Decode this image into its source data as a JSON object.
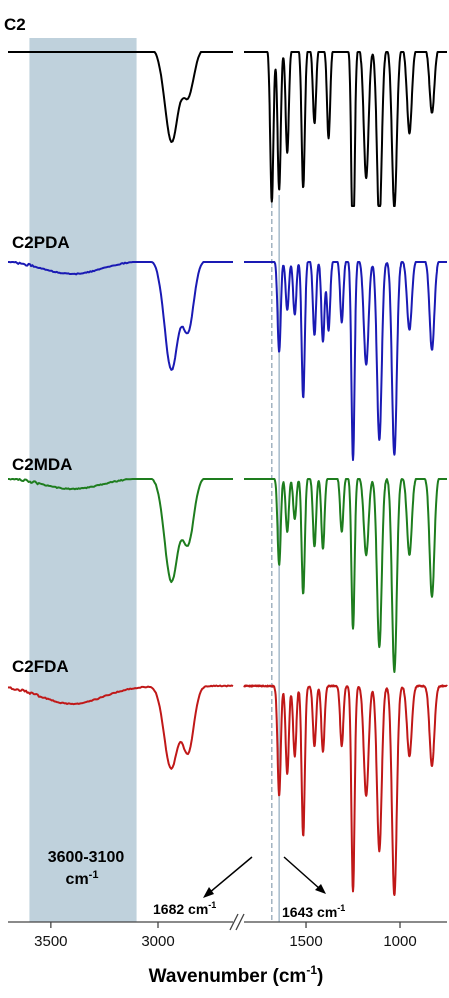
{
  "chart_data": {
    "type": "line",
    "title": "",
    "xlabel": "Wavenumber (cm",
    "xlabel_sup": "-1",
    "xlabel_end": ")",
    "ylabel": "",
    "x_reversed": true,
    "axis_break": "//",
    "xlim_left_segment": [
      3700,
      2650
    ],
    "xlim_right_segment": [
      1830,
      750
    ],
    "ticks_left": [
      3500,
      3000
    ],
    "ticks_right": [
      1500,
      1000
    ],
    "tick_labels": [
      "3500",
      "3000",
      "1500",
      "1000"
    ],
    "shaded_region": {
      "from": 3600,
      "to": 3100,
      "color": "#bfd1dc",
      "label_line1": "3600-3100",
      "label_line2": "cm",
      "label_sup": "-1"
    },
    "reference_lines": [
      {
        "x": 1682,
        "style": "dashed",
        "label": "1682 cm",
        "label_sup": "-1"
      },
      {
        "x": 1643,
        "style": "solid",
        "label": "1643 cm",
        "label_sup": "-1"
      }
    ],
    "series": [
      {
        "name": "C2",
        "color": "#000000",
        "baseline": 48,
        "band_hi": 52,
        "band_lo": 206,
        "hump": 0,
        "dips": [
          {
            "x": 2930,
            "d": 75
          },
          {
            "x": 2860,
            "d": 48
          },
          {
            "x": 2960,
            "d": 30
          },
          {
            "x": 1682,
            "d": 154
          },
          {
            "x": 1643,
            "d": 142
          },
          {
            "x": 1600,
            "d": 105
          },
          {
            "x": 1515,
            "d": 140
          },
          {
            "x": 1455,
            "d": 75
          },
          {
            "x": 1380,
            "d": 90
          },
          {
            "x": 1250,
            "d": 215
          },
          {
            "x": 1180,
            "d": 130
          },
          {
            "x": 1110,
            "d": 175
          },
          {
            "x": 1030,
            "d": 160
          },
          {
            "x": 950,
            "d": 85
          },
          {
            "x": 830,
            "d": 65
          }
        ]
      },
      {
        "name": "C2PDA",
        "color": "#1a1ab4",
        "baseline": 260,
        "band_hi": 262,
        "band_lo": 460,
        "hump": 14,
        "dips": [
          {
            "x": 2930,
            "d": 84
          },
          {
            "x": 2860,
            "d": 70
          },
          {
            "x": 2960,
            "d": 40
          },
          {
            "x": 1643,
            "d": 92
          },
          {
            "x": 1600,
            "d": 50
          },
          {
            "x": 1560,
            "d": 55
          },
          {
            "x": 1515,
            "d": 138
          },
          {
            "x": 1455,
            "d": 75
          },
          {
            "x": 1410,
            "d": 82
          },
          {
            "x": 1380,
            "d": 70
          },
          {
            "x": 1310,
            "d": 62
          },
          {
            "x": 1250,
            "d": 200
          },
          {
            "x": 1180,
            "d": 105
          },
          {
            "x": 1110,
            "d": 180
          },
          {
            "x": 1030,
            "d": 195
          },
          {
            "x": 950,
            "d": 70
          },
          {
            "x": 830,
            "d": 90
          }
        ]
      },
      {
        "name": "C2MDA",
        "color": "#1e7d1e",
        "baseline": 477,
        "band_hi": 479,
        "band_lo": 672,
        "hump": 12,
        "dips": [
          {
            "x": 2930,
            "d": 80
          },
          {
            "x": 2860,
            "d": 66
          },
          {
            "x": 2960,
            "d": 38
          },
          {
            "x": 1643,
            "d": 88
          },
          {
            "x": 1600,
            "d": 55
          },
          {
            "x": 1560,
            "d": 42
          },
          {
            "x": 1515,
            "d": 117
          },
          {
            "x": 1455,
            "d": 70
          },
          {
            "x": 1410,
            "d": 72
          },
          {
            "x": 1310,
            "d": 55
          },
          {
            "x": 1250,
            "d": 152
          },
          {
            "x": 1180,
            "d": 78
          },
          {
            "x": 1110,
            "d": 170
          },
          {
            "x": 1030,
            "d": 195
          },
          {
            "x": 950,
            "d": 78
          },
          {
            "x": 830,
            "d": 120
          }
        ]
      },
      {
        "name": "C2FDA",
        "color": "#c01818",
        "baseline": 686,
        "band_hi": 683,
        "band_lo": 895,
        "hump": 18,
        "dips": [
          {
            "x": 2930,
            "d": 60
          },
          {
            "x": 2860,
            "d": 66
          },
          {
            "x": 2960,
            "d": 34
          },
          {
            "x": 1643,
            "d": 110
          },
          {
            "x": 1600,
            "d": 88
          },
          {
            "x": 1560,
            "d": 70
          },
          {
            "x": 1515,
            "d": 150
          },
          {
            "x": 1455,
            "d": 60
          },
          {
            "x": 1410,
            "d": 66
          },
          {
            "x": 1310,
            "d": 60
          },
          {
            "x": 1250,
            "d": 205
          },
          {
            "x": 1180,
            "d": 110
          },
          {
            "x": 1110,
            "d": 165
          },
          {
            "x": 1030,
            "d": 210
          },
          {
            "x": 950,
            "d": 70
          },
          {
            "x": 830,
            "d": 80
          }
        ]
      }
    ]
  }
}
